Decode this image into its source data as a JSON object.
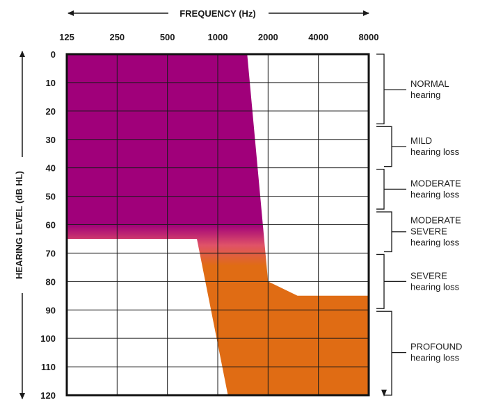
{
  "chart_data": {
    "type": "area",
    "xlabel": "FREQUENCY (Hz)",
    "ylabel": "HEARING LEVEL (dB HL)",
    "x_ticks": [
      "125",
      "250",
      "500",
      "1000",
      "2000",
      "4000",
      "8000"
    ],
    "y_ticks": [
      "0",
      "10",
      "20",
      "30",
      "40",
      "50",
      "60",
      "70",
      "80",
      "90",
      "100",
      "110",
      "120"
    ],
    "ylim": [
      0,
      120
    ],
    "y_inverted": true,
    "grid": true,
    "colors": {
      "top": "#a0007a",
      "mid": "#e05268",
      "bottom": "#e06c14"
    },
    "regions": [
      {
        "points": [
          [
            125,
            0
          ],
          [
            1500,
            0
          ],
          [
            2000,
            80
          ],
          [
            3000,
            85
          ],
          [
            8000,
            85
          ],
          [
            8000,
            120
          ],
          [
            1150,
            120
          ],
          [
            750,
            65
          ],
          [
            125,
            65
          ]
        ]
      }
    ],
    "categories": [
      {
        "main": [
          "NORMAL"
        ],
        "sub": "hearing",
        "range": [
          0,
          25
        ]
      },
      {
        "main": [
          "MILD"
        ],
        "sub": "hearing loss",
        "range": [
          25,
          40
        ]
      },
      {
        "main": [
          "MODERATE"
        ],
        "sub": "hearing loss",
        "range": [
          40,
          55
        ]
      },
      {
        "main": [
          "MODERATE",
          "SEVERE"
        ],
        "sub": "hearing loss",
        "range": [
          55,
          70
        ]
      },
      {
        "main": [
          "SEVERE"
        ],
        "sub": "hearing loss",
        "range": [
          70,
          90
        ]
      },
      {
        "main": [
          "PROFOUND"
        ],
        "sub": "hearing loss",
        "range": [
          90,
          120
        ]
      }
    ]
  }
}
